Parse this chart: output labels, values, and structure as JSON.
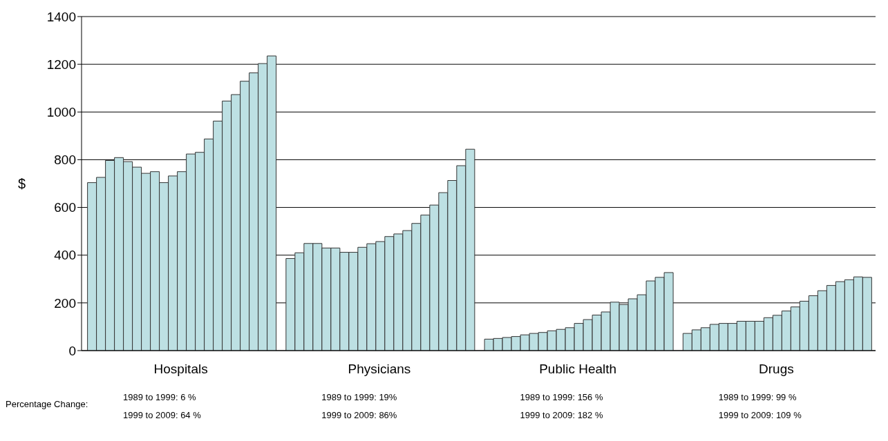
{
  "chart_data": {
    "type": "bar",
    "ylabel": "$",
    "categories": [
      "Hospitals",
      "Physicians",
      "Public Health",
      "Drugs"
    ],
    "series": [
      {
        "color": "#bde0e3",
        "values": [
          704,
          386,
          48,
          72
        ]
      },
      {
        "color": "#bde0e3",
        "values": [
          726,
          410,
          51,
          87
        ]
      },
      {
        "color": "#bde0e3",
        "values": [
          797,
          449,
          55,
          96
        ]
      },
      {
        "color": "#bde0e3",
        "values": [
          809,
          449,
          59,
          110
        ]
      },
      {
        "color": "#bde0e3",
        "values": [
          792,
          430,
          66,
          114
        ]
      },
      {
        "color": "#bde0e3",
        "values": [
          769,
          430,
          72,
          114
        ]
      },
      {
        "color": "#bde0e3",
        "values": [
          743,
          412,
          76,
          123
        ]
      },
      {
        "color": "#bde0e3",
        "values": [
          750,
          412,
          83,
          123
        ]
      },
      {
        "color": "#bde0e3",
        "values": [
          704,
          433,
          89,
          123
        ]
      },
      {
        "color": "#bde0e3",
        "values": [
          732,
          448,
          96,
          138
        ]
      },
      {
        "color": "#bde0e3",
        "values": [
          750,
          457,
          114,
          148
        ]
      },
      {
        "color": "#bde0e3",
        "values": [
          824,
          478,
          130,
          166
        ]
      },
      {
        "color": "#bde0e3",
        "values": [
          831,
          489,
          149,
          183
        ]
      },
      {
        "color": "#bde0e3",
        "values": [
          887,
          503,
          162,
          207
        ]
      },
      {
        "color": "#bde0e3",
        "values": [
          962,
          533,
          203,
          230
        ]
      },
      {
        "color": "#bde0e3",
        "values": [
          1046,
          568,
          193,
          251
        ]
      },
      {
        "color": "#bde0e3",
        "values": [
          1073,
          610,
          217,
          273
        ]
      },
      {
        "color": "#bde0e3",
        "values": [
          1129,
          662,
          234,
          289
        ]
      },
      {
        "color": "#bde0e3",
        "values": [
          1164,
          713,
          292,
          297
        ]
      },
      {
        "color": "#bde0e3",
        "values": [
          1203,
          775,
          307,
          309
        ]
      },
      {
        "color": "#bde0e3",
        "values": [
          1235,
          844,
          327,
          307
        ]
      }
    ],
    "ylim": [
      0,
      1400
    ],
    "yticks": [
      0,
      200,
      400,
      600,
      800,
      1000,
      1200,
      1400
    ],
    "grid": "y",
    "annotations": [
      "Percentage Change:",
      "1989 to 1999: 6 %",
      "1999 to 2009: 64 %",
      "1989 to 1999: 19%",
      "1999 to 2009: 86%",
      "1989 to 1999: 156 %",
      "1999 to 2009: 182 %",
      "1989 to 1999: 99 %",
      "1999 to 2009: 109 %"
    ]
  }
}
